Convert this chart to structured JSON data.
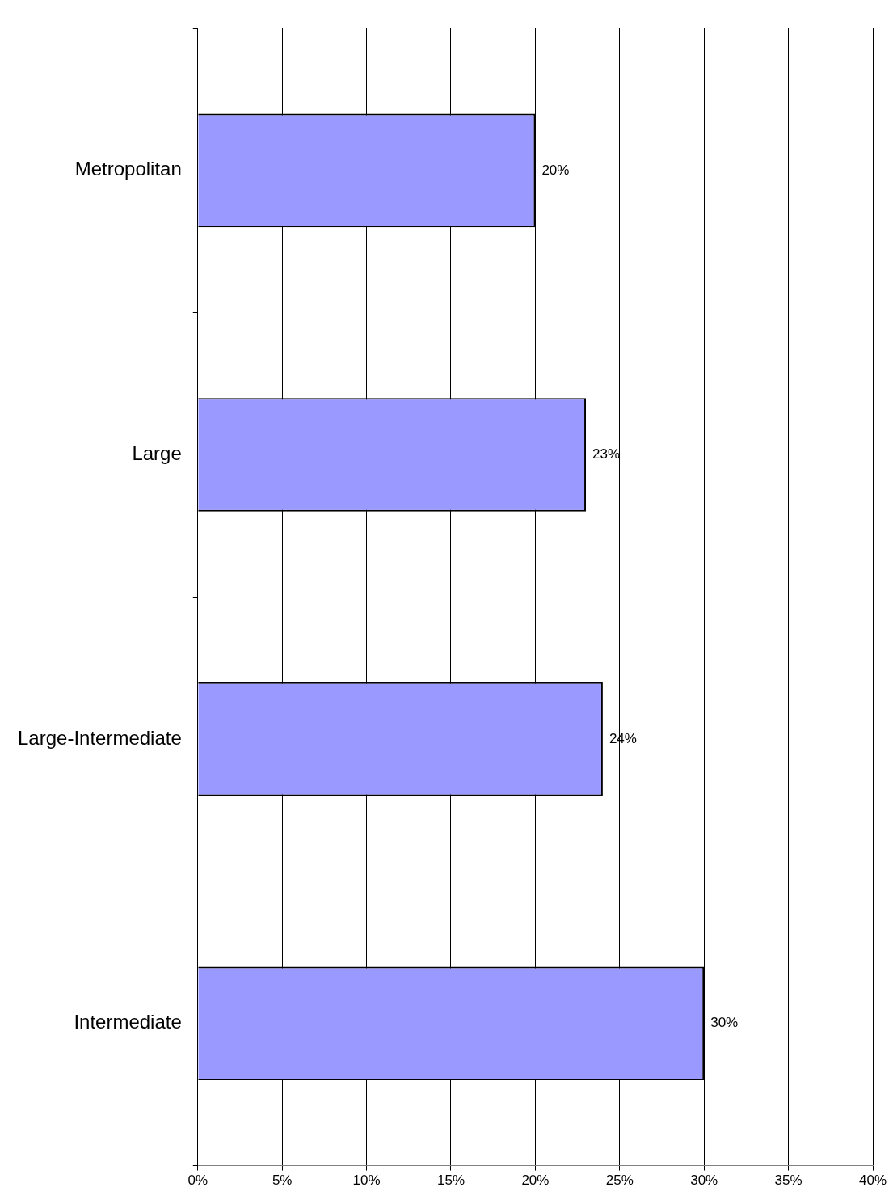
{
  "chart_data": {
    "type": "bar",
    "orientation": "horizontal",
    "categories": [
      "Metropolitan",
      "Large",
      "Large-Intermediate",
      "Intermediate"
    ],
    "values": [
      20,
      23,
      24,
      30
    ],
    "value_labels": [
      "20%",
      "23%",
      "24%",
      "30%"
    ],
    "color": "#9999ff",
    "xlim": [
      0,
      40
    ],
    "xticks": [
      {
        "value": 0,
        "label": "0%"
      },
      {
        "value": 5,
        "label": "5%"
      },
      {
        "value": 10,
        "label": "10%"
      },
      {
        "value": 15,
        "label": "15%"
      },
      {
        "value": 20,
        "label": "20%"
      },
      {
        "value": 25,
        "label": "25%"
      },
      {
        "value": 30,
        "label": "30%"
      },
      {
        "value": 35,
        "label": "35%"
      },
      {
        "value": 40,
        "label": "40%"
      }
    ],
    "grid": "x",
    "legend": false
  }
}
